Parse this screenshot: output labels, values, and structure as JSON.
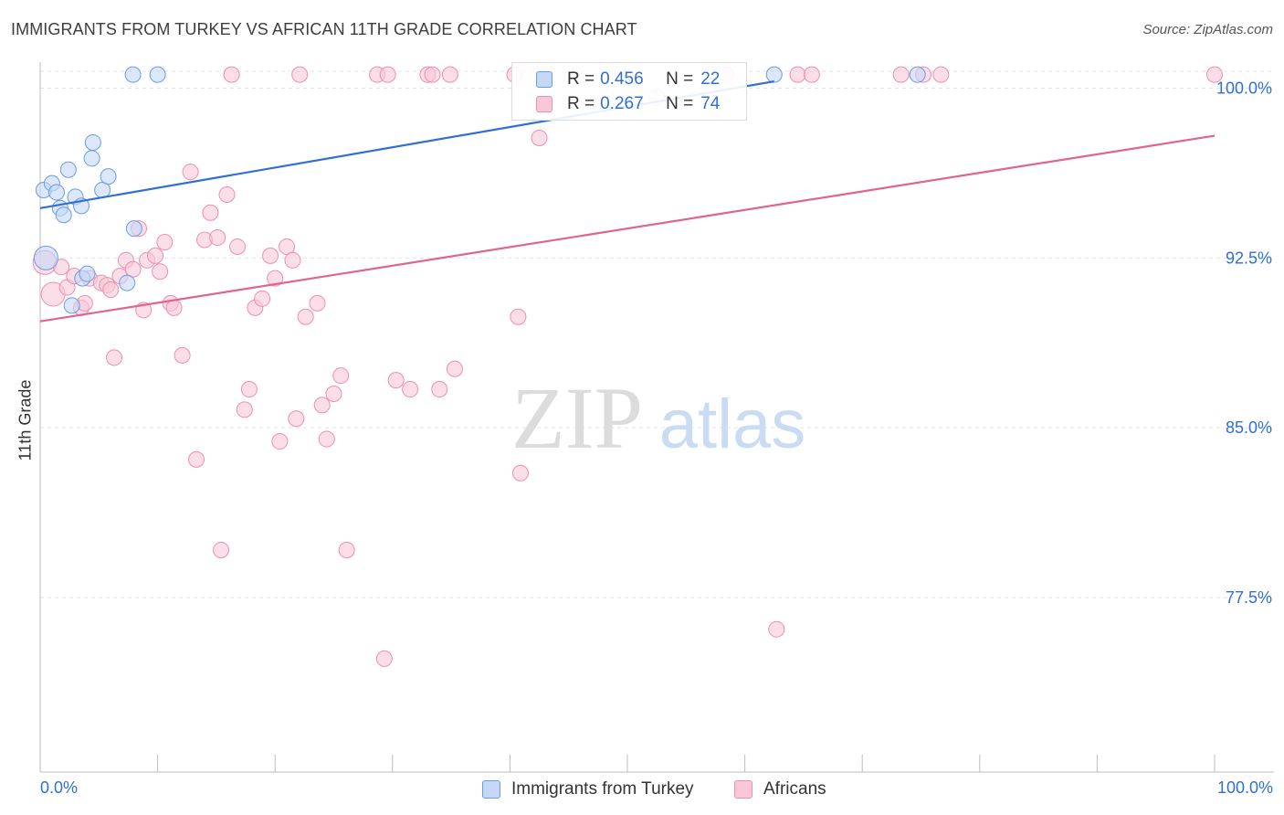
{
  "title": "IMMIGRANTS FROM TURKEY VS AFRICAN 11TH GRADE CORRELATION CHART",
  "source": "Source: ZipAtlas.com",
  "watermark": {
    "zip": "ZIP",
    "atlas": "atlas"
  },
  "legend_top": [
    {
      "label": "R =",
      "r": "0.456",
      "n_label": "N =",
      "n": "22",
      "color": "#6a9be8",
      "fill": "#c5d9f6"
    },
    {
      "label": "R =",
      "r": "0.267",
      "n_label": "N =",
      "n": "74",
      "color": "#ee8fb0",
      "fill": "#f8c8d7"
    }
  ],
  "legend_bottom": [
    {
      "label": "Immigrants from Turkey",
      "color": "#6a9be8",
      "fill": "#c5d9f6"
    },
    {
      "label": "Africans",
      "color": "#ee8fb0",
      "fill": "#f8c8d7"
    }
  ],
  "chart_data": {
    "type": "scatter",
    "title": "IMMIGRANTS FROM TURKEY VS AFRICAN 11TH GRADE CORRELATION CHART",
    "xlabel": "",
    "ylabel": "11th Grade",
    "xlim": [
      0,
      100
    ],
    "ylim": [
      70.0,
      100.8
    ],
    "x_tick_labels": [
      "0.0%",
      "100.0%"
    ],
    "y_ticks": [
      77.5,
      85.0,
      92.5,
      100.0
    ],
    "y_tick_labels": [
      "77.5%",
      "85.0%",
      "92.5%",
      "100.0%"
    ],
    "grid": true,
    "series": [
      {
        "name": "Immigrants from Turkey",
        "color": "#2f6fd6",
        "fill": "#c5d9f6",
        "stroke": "#6a9be8",
        "points": [
          [
            0.3,
            95.5
          ],
          [
            0.5,
            92.5
          ],
          [
            1.0,
            95.8
          ],
          [
            1.4,
            95.4
          ],
          [
            1.7,
            94.7
          ],
          [
            2.0,
            94.4
          ],
          [
            2.4,
            96.4
          ],
          [
            2.7,
            90.4
          ],
          [
            3.0,
            95.2
          ],
          [
            3.5,
            94.8
          ],
          [
            3.6,
            91.6
          ],
          [
            4.0,
            91.8
          ],
          [
            4.4,
            96.9
          ],
          [
            4.5,
            97.6
          ],
          [
            5.3,
            95.5
          ],
          [
            5.8,
            96.1
          ],
          [
            7.4,
            91.4
          ],
          [
            8.0,
            93.8
          ],
          [
            7.9,
            100.6
          ],
          [
            10.0,
            100.6
          ],
          [
            62.5,
            100.6
          ],
          [
            74.7,
            100.6
          ]
        ],
        "trend": {
          "x": [
            0,
            62.5
          ],
          "y": [
            94.7,
            100.3
          ]
        }
      },
      {
        "name": "Africans",
        "color": "#e0648e",
        "fill": "#f8c8d7",
        "stroke": "#ee8fb0",
        "points": [
          [
            0.4,
            92.3
          ],
          [
            1.1,
            90.9
          ],
          [
            1.8,
            92.1
          ],
          [
            2.3,
            91.2
          ],
          [
            2.9,
            91.7
          ],
          [
            3.5,
            90.3
          ],
          [
            3.8,
            90.5
          ],
          [
            4.2,
            91.6
          ],
          [
            5.2,
            91.4
          ],
          [
            5.7,
            91.3
          ],
          [
            6.0,
            91.1
          ],
          [
            6.3,
            88.1
          ],
          [
            6.8,
            91.7
          ],
          [
            7.3,
            92.4
          ],
          [
            7.9,
            92.0
          ],
          [
            8.4,
            93.8
          ],
          [
            8.8,
            90.2
          ],
          [
            9.1,
            92.4
          ],
          [
            9.8,
            92.6
          ],
          [
            10.2,
            91.9
          ],
          [
            10.6,
            93.2
          ],
          [
            11.1,
            90.5
          ],
          [
            11.4,
            90.3
          ],
          [
            12.1,
            88.2
          ],
          [
            12.8,
            96.3
          ],
          [
            13.3,
            83.6
          ],
          [
            14.0,
            93.3
          ],
          [
            14.5,
            94.5
          ],
          [
            15.1,
            93.4
          ],
          [
            15.4,
            79.6
          ],
          [
            15.9,
            95.3
          ],
          [
            16.3,
            100.6
          ],
          [
            16.8,
            93.0
          ],
          [
            17.4,
            85.8
          ],
          [
            17.8,
            86.7
          ],
          [
            18.3,
            90.3
          ],
          [
            18.9,
            90.7
          ],
          [
            19.6,
            92.6
          ],
          [
            20.0,
            91.6
          ],
          [
            20.4,
            84.4
          ],
          [
            21.0,
            93.0
          ],
          [
            21.5,
            92.4
          ],
          [
            21.8,
            85.4
          ],
          [
            22.1,
            100.6
          ],
          [
            22.6,
            89.9
          ],
          [
            23.6,
            90.5
          ],
          [
            24.0,
            86.0
          ],
          [
            24.4,
            84.5
          ],
          [
            25.0,
            86.5
          ],
          [
            25.6,
            87.3
          ],
          [
            26.1,
            79.6
          ],
          [
            28.7,
            100.6
          ],
          [
            29.3,
            74.8
          ],
          [
            29.6,
            100.6
          ],
          [
            30.3,
            87.1
          ],
          [
            31.5,
            86.7
          ],
          [
            33.0,
            100.6
          ],
          [
            33.4,
            100.6
          ],
          [
            34.0,
            86.7
          ],
          [
            34.9,
            100.6
          ],
          [
            35.3,
            87.6
          ],
          [
            40.4,
            100.6
          ],
          [
            40.7,
            89.9
          ],
          [
            40.9,
            83.0
          ],
          [
            42.5,
            97.8
          ],
          [
            52.5,
            99.6
          ],
          [
            58.4,
            100.6
          ],
          [
            62.7,
            76.1
          ],
          [
            64.5,
            100.6
          ],
          [
            65.7,
            100.6
          ],
          [
            73.3,
            100.6
          ],
          [
            75.2,
            100.6
          ],
          [
            76.7,
            100.6
          ],
          [
            100.0,
            100.6
          ]
        ],
        "trend": {
          "x": [
            0,
            100
          ],
          "y": [
            89.7,
            97.9
          ]
        }
      }
    ]
  }
}
